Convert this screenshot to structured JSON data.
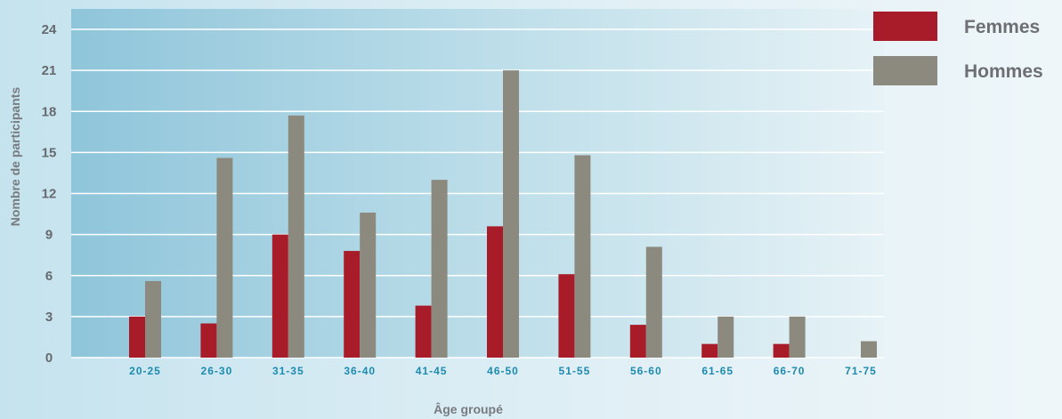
{
  "chart_data": {
    "type": "bar",
    "title": "",
    "xlabel": "Âge groupé",
    "ylabel": "Nombre de participants",
    "ylim": [
      0,
      24
    ],
    "yticks": [
      0,
      3,
      6,
      9,
      12,
      15,
      18,
      21,
      24
    ],
    "grid": true,
    "legend_position": "top-right",
    "categories": [
      "20-25",
      "26-30",
      "31-35",
      "36-40",
      "41-45",
      "46-50",
      "51-55",
      "56-60",
      "61-65",
      "66-70",
      "71-75"
    ],
    "series": [
      {
        "name": "Femmes",
        "color": "#a81c2a",
        "values": [
          3,
          2.5,
          9,
          7.8,
          3.8,
          9.6,
          6.1,
          2.4,
          1,
          1,
          0
        ]
      },
      {
        "name": "Hommes",
        "color": "#8c8a7f",
        "values": [
          5.6,
          14.6,
          17.7,
          10.6,
          13,
          21,
          14.8,
          8.1,
          3,
          3,
          1.2
        ]
      }
    ]
  }
}
